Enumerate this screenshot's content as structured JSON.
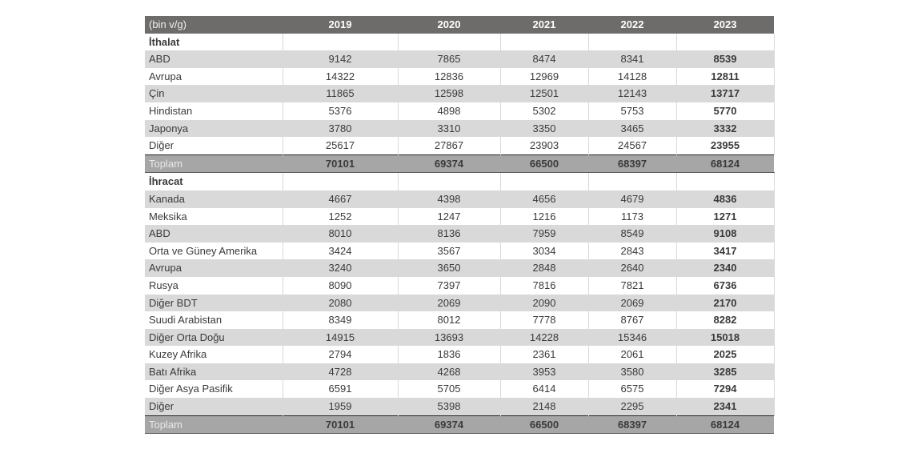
{
  "colors": {
    "header_bg": "#6e6b6b",
    "header_text": "#ffffff",
    "row_shade": "#d9d9d9",
    "total_bg": "#a6a6a6",
    "total_text": "#ffffff",
    "gridline": "#d9d9d9",
    "body_text": "#3a3a3a",
    "bold_text": "#141414"
  },
  "chart_data": {
    "type": "table",
    "header": {
      "label": "(bin v/g)",
      "years": [
        "2019",
        "2020",
        "2021",
        "2022",
        "2023"
      ]
    },
    "rows": [
      {
        "type": "section",
        "label": "İthalat",
        "values": [
          "",
          "",
          "",
          "",
          ""
        ]
      },
      {
        "type": "data",
        "label": "ABD",
        "values": [
          9142,
          7865,
          8474,
          8341,
          8539
        ]
      },
      {
        "type": "data",
        "label": "Avrupa",
        "values": [
          14322,
          12836,
          12969,
          14128,
          12811
        ]
      },
      {
        "type": "data",
        "label": "Çin",
        "values": [
          11865,
          12598,
          12501,
          12143,
          13717
        ]
      },
      {
        "type": "data",
        "label": "Hindistan",
        "values": [
          5376,
          4898,
          5302,
          5753,
          5770
        ]
      },
      {
        "type": "data",
        "label": "Japonya",
        "values": [
          3780,
          3310,
          3350,
          3465,
          3332
        ]
      },
      {
        "type": "data",
        "label": "Diğer",
        "values": [
          25617,
          27867,
          23903,
          24567,
          23955
        ]
      },
      {
        "type": "total",
        "label": "Toplam",
        "values": [
          70101,
          69374,
          66500,
          68397,
          68124
        ]
      },
      {
        "type": "section",
        "label": "İhracat",
        "values": [
          "",
          "",
          "",
          "",
          ""
        ]
      },
      {
        "type": "data",
        "label": "Kanada",
        "values": [
          4667,
          4398,
          4656,
          4679,
          4836
        ]
      },
      {
        "type": "data",
        "label": "Meksika",
        "values": [
          1252,
          1247,
          1216,
          1173,
          1271
        ]
      },
      {
        "type": "data",
        "label": "ABD",
        "values": [
          8010,
          8136,
          7959,
          8549,
          9108
        ]
      },
      {
        "type": "data",
        "label": "Orta ve Güney Amerika",
        "values": [
          3424,
          3567,
          3034,
          2843,
          3417
        ]
      },
      {
        "type": "data",
        "label": "Avrupa",
        "values": [
          3240,
          3650,
          2848,
          2640,
          2340
        ]
      },
      {
        "type": "data",
        "label": "Rusya",
        "values": [
          8090,
          7397,
          7816,
          7821,
          6736
        ]
      },
      {
        "type": "data",
        "label": "Diğer BDT",
        "values": [
          2080,
          2069,
          2090,
          2069,
          2170
        ]
      },
      {
        "type": "data",
        "label": "Suudi Arabistan",
        "values": [
          8349,
          8012,
          7778,
          8767,
          8282
        ]
      },
      {
        "type": "data",
        "label": "Diğer Orta Doğu",
        "values": [
          14915,
          13693,
          14228,
          15346,
          15018
        ]
      },
      {
        "type": "data",
        "label": "Kuzey Afrika",
        "values": [
          2794,
          1836,
          2361,
          2061,
          2025
        ]
      },
      {
        "type": "data",
        "label": "Batı Afrika",
        "values": [
          4728,
          4268,
          3953,
          3580,
          3285
        ]
      },
      {
        "type": "data",
        "label": "Diğer Asya Pasifik",
        "values": [
          6591,
          5705,
          6414,
          6575,
          7294
        ]
      },
      {
        "type": "data",
        "label": "Diğer",
        "values": [
          1959,
          5398,
          2148,
          2295,
          2341
        ]
      },
      {
        "type": "total",
        "label": "Toplam",
        "values": [
          70101,
          69374,
          66500,
          68397,
          68124
        ]
      }
    ]
  }
}
